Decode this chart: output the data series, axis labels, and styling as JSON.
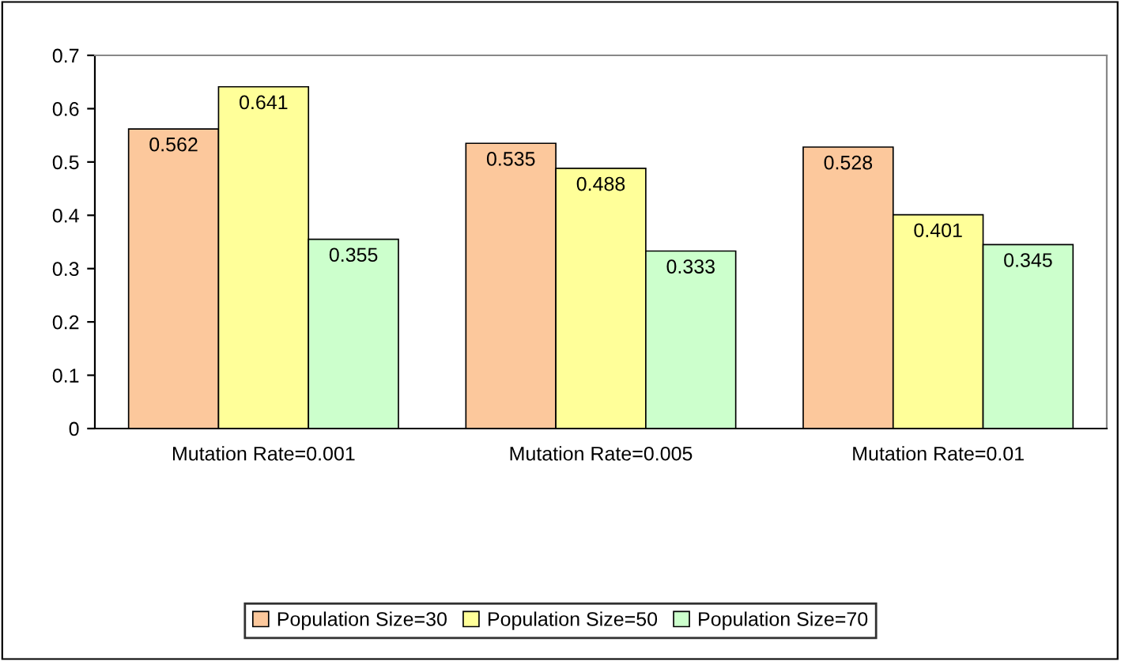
{
  "chart_data": {
    "type": "bar",
    "categories": [
      "Mutation Rate=0.001",
      "Mutation Rate=0.005",
      "Mutation Rate=0.01"
    ],
    "series": [
      {
        "name": "Population Size=30",
        "color": "#fcc89c",
        "values": [
          0.562,
          0.535,
          0.528
        ]
      },
      {
        "name": "Population Size=50",
        "color": "#ffff99",
        "values": [
          0.641,
          0.488,
          0.401
        ]
      },
      {
        "name": "Population Size=70",
        "color": "#ccffcc",
        "values": [
          0.355,
          0.333,
          0.345
        ]
      }
    ],
    "ylim": [
      0,
      0.7
    ],
    "yticks": [
      {
        "value": 0,
        "label": "0"
      },
      0.1,
      0.2,
      0.3,
      0.4,
      0.5,
      0.6,
      0.7
    ],
    "data_labels": true,
    "grid": false,
    "legend": "bottom"
  }
}
